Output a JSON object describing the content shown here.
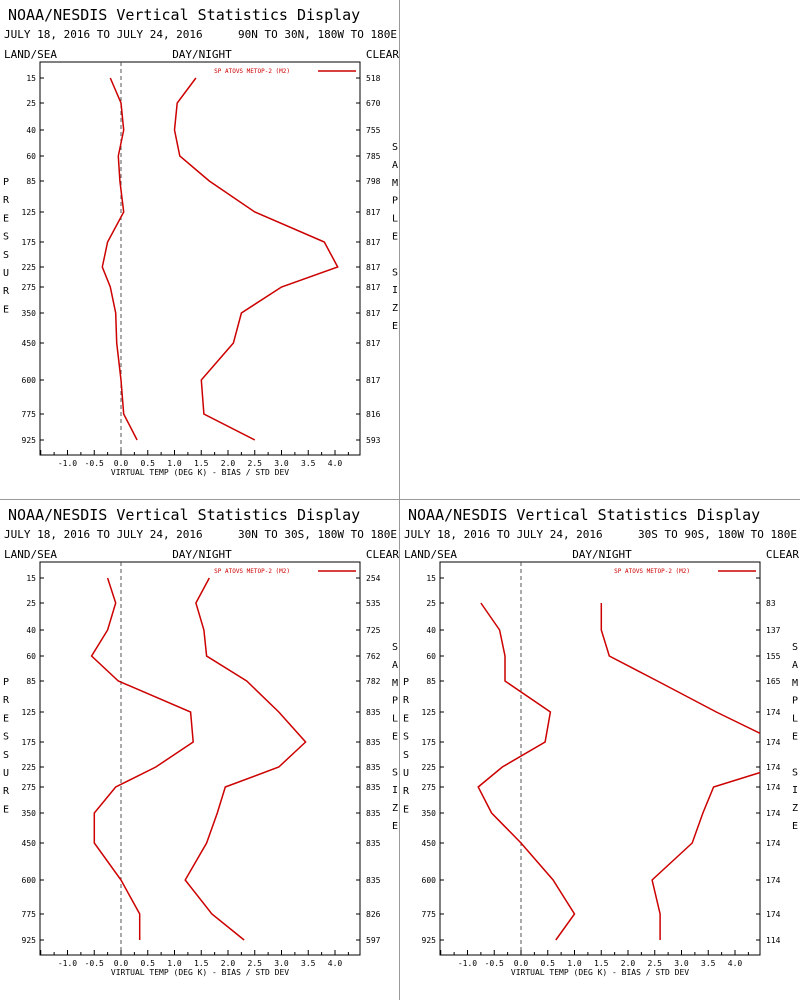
{
  "page": {
    "title": "NOAA/NESDIS Vertical Statistics Display",
    "land_sea": "LAND/SEA",
    "day_night": "DAY/NIGHT",
    "clear": "CLEAR",
    "y_axis_letters": [
      "P",
      "R",
      "E",
      "S",
      "S",
      "U",
      "R",
      "E"
    ],
    "right_axis_letters": [
      "S",
      "A",
      "M",
      "P",
      "L",
      "E",
      "",
      "S",
      "I",
      "Z",
      "E"
    ],
    "line_color": "#cc0000"
  },
  "chart_data": [
    {
      "type": "line",
      "title": "NOAA/NESDIS Vertical Statistics Display",
      "date_range": "JULY 18, 2016 TO JULY 24, 2016",
      "region": "90N TO 30N, 180W TO 180E",
      "xlabel": "VIRTUAL TEMP (DEG K) - BIAS / STD DEV",
      "ylabel": "PRESSURE",
      "right_label": "SAMPLE SIZE",
      "xlim": [
        -1.5,
        4.5
      ],
      "x_ticks": [
        "-1.0",
        "-0.5",
        "0.0",
        "0.5",
        "1.0",
        "1.5",
        "2.0",
        "2.5",
        "3.0",
        "3.5",
        "4.0"
      ],
      "pressure_levels": [
        "15",
        "25",
        "40",
        "60",
        "85",
        "125",
        "175",
        "225",
        "275",
        "350",
        "450",
        "600",
        "775",
        "925"
      ],
      "sample_size": [
        "518",
        "670",
        "755",
        "785",
        "798",
        "817",
        "817",
        "817",
        "817",
        "817",
        "817",
        "817",
        "816",
        "593"
      ],
      "legend": "SP ATOVS METOP-2 (M2)",
      "legend_position": "top-right",
      "series": [
        {
          "name": "SP ATOVS METOP-2 (M2)",
          "stat": "bias",
          "values": [
            -0.2,
            0.0,
            0.05,
            -0.05,
            -0.02,
            0.05,
            -0.25,
            -0.35,
            -0.2,
            -0.1,
            -0.08,
            0.0,
            0.05,
            0.3
          ]
        },
        {
          "name": "SP ATOVS METOP-2 (M2)",
          "stat": "std_dev",
          "values": [
            1.4,
            1.05,
            1.0,
            1.1,
            1.65,
            2.5,
            3.8,
            4.05,
            3.0,
            2.25,
            2.1,
            1.5,
            1.55,
            2.5
          ]
        }
      ]
    },
    {
      "type": "line",
      "title": "NOAA/NESDIS Vertical Statistics Display",
      "date_range": "JULY 18, 2016 TO JULY 24, 2016",
      "region": "30N TO 30S, 180W TO 180E",
      "xlabel": "VIRTUAL TEMP (DEG K) - BIAS / STD DEV",
      "ylabel": "PRESSURE",
      "right_label": "SAMPLE SIZE",
      "xlim": [
        -1.5,
        4.5
      ],
      "x_ticks": [
        "-1.0",
        "-0.5",
        "0.0",
        "0.5",
        "1.0",
        "1.5",
        "2.0",
        "2.5",
        "3.0",
        "3.5",
        "4.0"
      ],
      "pressure_levels": [
        "15",
        "25",
        "40",
        "60",
        "85",
        "125",
        "175",
        "225",
        "275",
        "350",
        "450",
        "600",
        "775",
        "925"
      ],
      "sample_size": [
        "254",
        "535",
        "725",
        "762",
        "782",
        "835",
        "835",
        "835",
        "835",
        "835",
        "835",
        "835",
        "826",
        "597"
      ],
      "legend": "SP ATOVS METOP-2 (M2)",
      "legend_position": "top-right",
      "series": [
        {
          "name": "SP ATOVS METOP-2 (M2)",
          "stat": "bias",
          "values": [
            -0.25,
            -0.1,
            -0.25,
            -0.55,
            -0.05,
            1.3,
            1.35,
            0.65,
            -0.1,
            -0.5,
            -0.5,
            0.0,
            0.35,
            0.35
          ]
        },
        {
          "name": "SP ATOVS METOP-2 (M2)",
          "stat": "std_dev",
          "values": [
            1.65,
            1.4,
            1.55,
            1.6,
            2.35,
            2.95,
            3.45,
            2.95,
            1.95,
            1.8,
            1.6,
            1.2,
            1.7,
            2.3
          ]
        }
      ]
    },
    {
      "type": "line",
      "title": "NOAA/NESDIS Vertical Statistics Display",
      "date_range": "JULY 18, 2016 TO JULY 24, 2016",
      "region": "30S TO 90S, 180W TO 180E",
      "xlabel": "VIRTUAL TEMP (DEG K) - BIAS / STD DEV",
      "ylabel": "PRESSURE",
      "right_label": "SAMPLE SIZE",
      "xlim": [
        -1.5,
        4.5
      ],
      "x_ticks": [
        "-1.0",
        "-0.5",
        "0.0",
        "0.5",
        "1.0",
        "1.5",
        "2.0",
        "2.5",
        "3.0",
        "3.5",
        "4.0"
      ],
      "pressure_levels": [
        "15",
        "25",
        "40",
        "60",
        "85",
        "125",
        "175",
        "225",
        "275",
        "350",
        "450",
        "600",
        "775",
        "925"
      ],
      "sample_size": [
        "",
        "83",
        "137",
        "155",
        "165",
        "174",
        "174",
        "174",
        "174",
        "174",
        "174",
        "174",
        "174",
        "114"
      ],
      "legend": "SP ATOVS METOP-2 (M2)",
      "legend_position": "top-right",
      "series": [
        {
          "name": "SP ATOVS METOP-2 (M2)",
          "stat": "bias",
          "values": [
            null,
            -0.75,
            -0.4,
            -0.3,
            -0.3,
            0.55,
            0.45,
            -0.35,
            -0.8,
            -0.55,
            0.0,
            0.6,
            1.0,
            0.65
          ]
        },
        {
          "name": "SP ATOVS METOP-2 (M2)",
          "stat": "std_dev",
          "values": [
            null,
            1.5,
            1.5,
            1.65,
            2.55,
            3.65,
            4.8,
            4.8,
            3.6,
            3.4,
            3.2,
            2.45,
            2.6,
            2.6
          ]
        }
      ]
    }
  ]
}
